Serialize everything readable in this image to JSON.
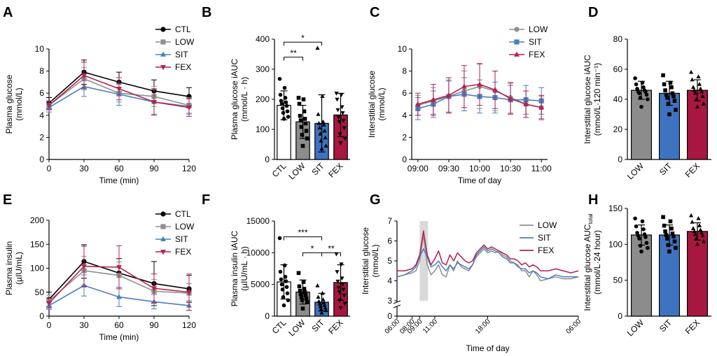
{
  "colors": {
    "CTL": "#000000",
    "LOW": "#8f8f8f",
    "SIT": "#4a7fc1",
    "FEX": "#b3234c",
    "SIT_bar": "#3e73bf",
    "FEX_bar": "#a8173f",
    "LOW_bar": "#8c8c8c",
    "shade": "#d9d9d9"
  },
  "chart_data": [
    {
      "panel": "A",
      "type": "line",
      "ylabel_lines": [
        "Plasma glucose",
        "(mmol/L)"
      ],
      "xlabel": "Time (min)",
      "x": [
        0,
        30,
        60,
        90,
        120
      ],
      "xlim": [
        0,
        120
      ],
      "ylim": [
        0,
        10
      ],
      "xticks": [
        "0",
        "30",
        "60",
        "90",
        "120"
      ],
      "yticks": [
        "0",
        "2",
        "4",
        "6",
        "8",
        "10"
      ],
      "legend": [
        "CTL",
        "LOW",
        "SIT",
        "FEX"
      ],
      "series": [
        {
          "name": "CTL",
          "marker": "circle",
          "values": [
            5.1,
            7.9,
            7.0,
            6.2,
            5.7
          ],
          "sd": [
            0.5,
            1.1,
            0.9,
            1.0,
            0.8
          ]
        },
        {
          "name": "LOW",
          "marker": "square",
          "values": [
            4.9,
            7.3,
            6.0,
            5.7,
            4.9
          ],
          "sd": [
            0.4,
            1.0,
            0.8,
            0.9,
            0.7
          ]
        },
        {
          "name": "SIT",
          "marker": "triangle",
          "values": [
            4.7,
            6.6,
            5.9,
            5.2,
            4.8
          ],
          "sd": [
            0.4,
            0.9,
            1.0,
            1.1,
            0.7
          ]
        },
        {
          "name": "FEX",
          "marker": "invtriangle",
          "values": [
            4.9,
            7.6,
            6.4,
            5.2,
            4.7
          ],
          "sd": [
            0.4,
            1.2,
            1.0,
            1.2,
            0.8
          ]
        }
      ]
    },
    {
      "panel": "B",
      "type": "bar",
      "ylabel_lines": [
        "Plasma glucose iAUC",
        "(mmol/L · h)"
      ],
      "categories": [
        "CTL",
        "LOW",
        "SIT",
        "FEX"
      ],
      "ylim": [
        0,
        400
      ],
      "yticks": [
        "0",
        "100",
        "200",
        "300",
        "400"
      ],
      "values": [
        180,
        125,
        120,
        148
      ],
      "sd": [
        48,
        55,
        95,
        72
      ],
      "markers": [
        "circle",
        "square",
        "triangle",
        "invtriangle"
      ],
      "points": [
        [
          268,
          238,
          215,
          205,
          195,
          190,
          185,
          178,
          170,
          160,
          155,
          142,
          135
        ],
        [
          205,
          200,
          185,
          160,
          145,
          135,
          130,
          120,
          108,
          95,
          82,
          70,
          45
        ],
        [
          370,
          210,
          150,
          125,
          120,
          115,
          105,
          95,
          85,
          72,
          62,
          45,
          35
        ],
        [
          220,
          215,
          200,
          175,
          165,
          155,
          140,
          130,
          125,
          105,
          85,
          70,
          55
        ]
      ],
      "brackets": [
        {
          "from": 0,
          "to": 1,
          "label": "**",
          "level": 340
        },
        {
          "from": 0,
          "to": 2,
          "label": "*",
          "level": 390
        }
      ]
    },
    {
      "panel": "C",
      "type": "line",
      "ylabel_lines": [
        "Interstitial glucose",
        "(mmol/L)"
      ],
      "xlabel": "Time of day",
      "x": [
        0,
        15,
        30,
        45,
        60,
        75,
        90,
        105,
        120
      ],
      "xlim": [
        -6,
        126
      ],
      "ylim": [
        0,
        10
      ],
      "xtick_values": [
        0,
        30,
        60,
        90,
        120
      ],
      "xticks": [
        "09:00",
        "09:30",
        "10:00",
        "10:30",
        "11:00"
      ],
      "yticks": [
        "0",
        "2",
        "4",
        "6",
        "8",
        "10"
      ],
      "legend": [
        "LOW",
        "SIT",
        "FEX"
      ],
      "series": [
        {
          "name": "LOW",
          "marker": "circle",
          "values": [
            4.9,
            5.3,
            5.7,
            6.2,
            6.6,
            6.2,
            5.6,
            5.0,
            4.7
          ],
          "sd": [
            0.9,
            1.2,
            1.5,
            1.8,
            2.0,
            1.8,
            1.4,
            1.2,
            1.0
          ]
        },
        {
          "name": "SIT",
          "marker": "square",
          "values": [
            4.6,
            5.0,
            5.7,
            5.9,
            5.7,
            5.6,
            5.4,
            5.4,
            5.3
          ],
          "sd": [
            1.0,
            1.2,
            1.4,
            1.5,
            1.5,
            1.4,
            1.3,
            1.3,
            1.2
          ]
        },
        {
          "name": "FEX",
          "marker": "triangle",
          "values": [
            5.0,
            5.4,
            5.8,
            6.6,
            6.8,
            6.3,
            5.5,
            5.0,
            4.7
          ],
          "sd": [
            1.0,
            1.4,
            1.6,
            1.9,
            1.9,
            1.7,
            1.4,
            1.2,
            1.1
          ]
        }
      ]
    },
    {
      "panel": "D",
      "type": "bar",
      "ylabel_lines": [
        "Interstitial glucose iAUC",
        "(mmol/L·120 min⁻¹)"
      ],
      "categories": [
        "LOW",
        "SIT",
        "FEX"
      ],
      "ylim": [
        0,
        80
      ],
      "yticks": [
        "0",
        "20",
        "40",
        "60",
        "80"
      ],
      "values": [
        46,
        44,
        46
      ],
      "sd": [
        6,
        8,
        7
      ],
      "markers": [
        "circle",
        "square",
        "triangle"
      ],
      "points": [
        [
          54,
          51,
          50,
          48,
          47,
          46,
          45,
          45,
          44,
          43,
          41,
          40,
          35
        ],
        [
          56,
          51,
          50,
          48,
          46,
          44,
          43,
          42,
          41,
          39,
          37,
          33,
          30
        ],
        [
          58,
          55,
          53,
          50,
          48,
          47,
          46,
          45,
          44,
          42,
          40,
          37,
          35
        ]
      ]
    },
    {
      "panel": "E",
      "type": "line",
      "ylabel_lines": [
        "Plasma insulin",
        "(µIU/mL)"
      ],
      "xlabel": "Time (min)",
      "x": [
        0,
        30,
        60,
        90,
        120
      ],
      "xlim": [
        0,
        120
      ],
      "ylim": [
        0,
        200
      ],
      "xticks": [
        "0",
        "30",
        "60",
        "90",
        "120"
      ],
      "yticks": [
        "0",
        "50",
        "100",
        "150",
        "200"
      ],
      "legend": [
        "CTL",
        "LOW",
        "SIT",
        "FEX"
      ],
      "series": [
        {
          "name": "CTL",
          "marker": "circle",
          "values": [
            35,
            114,
            90,
            68,
            57
          ],
          "sd": [
            15,
            35,
            30,
            46,
            28
          ]
        },
        {
          "name": "LOW",
          "marker": "square",
          "values": [
            32,
            95,
            85,
            52,
            48
          ],
          "sd": [
            12,
            30,
            28,
            25,
            20
          ]
        },
        {
          "name": "SIT",
          "marker": "triangle",
          "values": [
            22,
            64,
            40,
            30,
            22
          ],
          "sd": [
            8,
            22,
            20,
            15,
            10
          ]
        },
        {
          "name": "FEX",
          "marker": "invtriangle",
          "values": [
            27,
            104,
            102,
            58,
            50
          ],
          "sd": [
            10,
            42,
            45,
            30,
            38
          ]
        }
      ]
    },
    {
      "panel": "F",
      "type": "bar",
      "ylabel_lines": [
        "Plasma insulin iAUC",
        "(µIU/mL · h)"
      ],
      "categories": [
        "CTL",
        "LOW",
        "SIT",
        "FEX"
      ],
      "ylim": [
        0,
        15000
      ],
      "yticks": [
        "0",
        "5000",
        "10000",
        "15000"
      ],
      "values": [
        5400,
        3800,
        2200,
        5300
      ],
      "sd": [
        2700,
        1900,
        1400,
        2800
      ],
      "markers": [
        "circle",
        "square",
        "triangle",
        "invtriangle"
      ],
      "points": [
        [
          12300,
          8000,
          7000,
          6200,
          5800,
          5500,
          5000,
          4600,
          4200,
          3600,
          3000,
          2500,
          1700
        ],
        [
          6800,
          5400,
          4700,
          4300,
          4000,
          3800,
          3500,
          3300,
          3000,
          2800,
          2500,
          2200,
          1200
        ],
        [
          4800,
          3600,
          3000,
          2600,
          2300,
          2100,
          1900,
          1700,
          1500,
          1300,
          1100,
          900,
          500
        ],
        [
          9800,
          8200,
          7000,
          6000,
          5500,
          5000,
          4500,
          4200,
          3800,
          3300,
          2500,
          2000,
          1300
        ]
      ],
      "brackets": [
        {
          "from": 0,
          "to": 2,
          "label": "***",
          "level": 12500
        },
        {
          "from": 1,
          "to": 2,
          "label": "*",
          "level": 10000
        },
        {
          "from": 2,
          "to": 3,
          "label": "**",
          "level": 10000
        }
      ]
    },
    {
      "panel": "G",
      "type": "line",
      "ylabel_lines": [
        "Interstitial glucose",
        "(mmol/L)"
      ],
      "xlabel": "Time of day",
      "xlim": [
        0,
        24
      ],
      "ylim": [
        3,
        7
      ],
      "axis_break": true,
      "xtick_values": [
        0,
        2,
        3,
        5,
        12,
        24
      ],
      "xticks": [
        "06:00",
        "08:00",
        "09:00",
        "11:00",
        "18:00",
        "06:00"
      ],
      "ytick_values": [
        0,
        3,
        4,
        5,
        6,
        7
      ],
      "yticks": [
        "0",
        "3",
        "4",
        "5",
        "6",
        "7"
      ],
      "shaded_region": [
        3,
        4.1
      ],
      "legend": [
        "LOW",
        "SIT",
        "FEX"
      ],
      "x": [
        0,
        1,
        2,
        2.5,
        3,
        3.5,
        4,
        4.5,
        5,
        5.5,
        6,
        6.5,
        7,
        7.5,
        8,
        8.5,
        9,
        9.5,
        10,
        10.5,
        11,
        11.5,
        12,
        12.5,
        13,
        13.5,
        14,
        14.5,
        15,
        15.5,
        16,
        16.5,
        17,
        17.5,
        18,
        18.5,
        19,
        20,
        21,
        22,
        23,
        24
      ],
      "series": [
        {
          "name": "LOW",
          "values": [
            4.2,
            4.3,
            4.4,
            4.5,
            5.0,
            6.3,
            4.8,
            4.3,
            4.5,
            4.8,
            4.3,
            4.2,
            4.8,
            4.5,
            5.0,
            4.7,
            4.6,
            4.5,
            4.8,
            5.2,
            5.4,
            5.6,
            5.4,
            5.5,
            5.4,
            5.5,
            5.3,
            5.2,
            5.0,
            4.9,
            4.8,
            4.5,
            4.5,
            4.2,
            4.5,
            4.3,
            4.0,
            4.1,
            4.2,
            4.1,
            4.1,
            4.2
          ]
        },
        {
          "name": "SIT",
          "values": [
            4.2,
            4.3,
            4.5,
            4.7,
            5.2,
            5.6,
            5.2,
            4.7,
            4.8,
            5.0,
            4.7,
            4.5,
            4.8,
            4.6,
            4.9,
            4.8,
            4.7,
            4.6,
            4.8,
            5.3,
            5.5,
            5.7,
            5.5,
            5.6,
            5.5,
            5.4,
            5.2,
            5.1,
            4.9,
            4.9,
            4.7,
            4.6,
            4.6,
            4.4,
            4.5,
            4.4,
            4.2,
            4.1,
            4.3,
            4.2,
            4.2,
            4.2
          ]
        },
        {
          "name": "FEX",
          "values": [
            4.5,
            4.5,
            4.6,
            4.8,
            5.3,
            6.5,
            5.3,
            4.8,
            5.1,
            5.5,
            4.9,
            4.8,
            5.3,
            5.0,
            5.4,
            5.2,
            5.0,
            4.9,
            5.0,
            5.4,
            5.6,
            5.8,
            5.6,
            5.7,
            5.6,
            5.5,
            5.4,
            5.3,
            5.1,
            5.1,
            5.0,
            4.8,
            4.9,
            4.7,
            4.8,
            4.7,
            4.5,
            4.5,
            4.6,
            4.5,
            4.4,
            4.5
          ]
        }
      ]
    },
    {
      "panel": "H",
      "type": "bar",
      "ylabel_lines": [
        "Interstitial glucose AUC",
        "(mmol/L·24 hour)"
      ],
      "ylabel_base": "Interstitial glucose AUC",
      "ylabel_sub": "total",
      "categories": [
        "LOW",
        "SIT",
        "FEX"
      ],
      "ylim": [
        0,
        150
      ],
      "yticks": [
        "0",
        "50",
        "100",
        "150"
      ],
      "values": [
        113,
        113,
        118
      ],
      "sd": [
        14,
        14,
        12
      ],
      "markers": [
        "circle",
        "square",
        "triangle"
      ],
      "points": [
        [
          136,
          132,
          125,
          121,
          116,
          114,
          112,
          110,
          108,
          102,
          98,
          95,
          90
        ],
        [
          138,
          132,
          126,
          122,
          118,
          115,
          113,
          111,
          108,
          104,
          99,
          95,
          90
        ],
        [
          140,
          136,
          131,
          126,
          122,
          120,
          118,
          116,
          114,
          112,
          108,
          104,
          100
        ]
      ]
    }
  ]
}
